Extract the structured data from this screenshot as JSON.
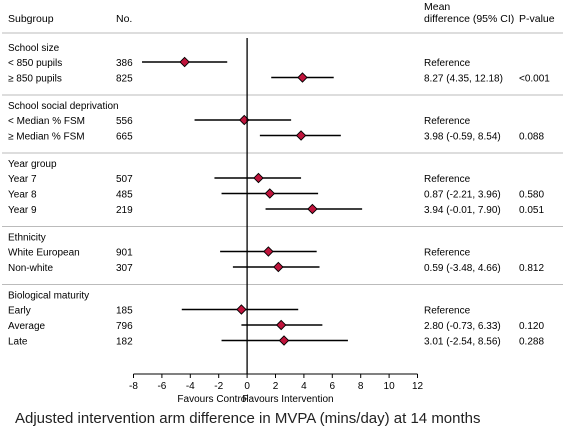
{
  "chart_data": {
    "type": "forest",
    "caption": "Adjusted intervention arm difference in  MVPA (mins/day) at  14 months",
    "columns": {
      "subgroup": "Subgroup",
      "n": "No.",
      "mean_line1": "Mean",
      "mean_line2": "difference (95% CI)",
      "pvalue": "P-value"
    },
    "x_axis": {
      "ticks": [
        -8,
        -6,
        -4,
        -2,
        0,
        2,
        4,
        6,
        8,
        10,
        12
      ],
      "range": [
        -8,
        12
      ],
      "left_label": "Favours Control",
      "right_label": "Favours Intervention"
    },
    "marker_color": "#c0143c",
    "groups": [
      {
        "title": "School size",
        "rows": [
          {
            "label": "< 850 pupils",
            "n": "386",
            "mean": -4.4,
            "lo": -7.4,
            "hi": -1.4,
            "text": "Reference",
            "p": ""
          },
          {
            "label": "≥ 850 pupils",
            "n": "825",
            "mean": 3.9,
            "lo": 1.7,
            "hi": 6.1,
            "text": "8.27 (4.35, 12.18)",
            "p": "<0.001"
          }
        ]
      },
      {
        "title": "School social deprivation",
        "rows": [
          {
            "label": "< Median % FSM",
            "n": "556",
            "mean": -0.2,
            "lo": -3.7,
            "hi": 3.1,
            "text": "Reference",
            "p": ""
          },
          {
            "label": "≥ Median % FSM",
            "n": "665",
            "mean": 3.8,
            "lo": 0.9,
            "hi": 6.6,
            "text": "3.98 (-0.59, 8.54)",
            "p": "0.088"
          }
        ]
      },
      {
        "title": "Year group",
        "rows": [
          {
            "label": "Year 7",
            "n": "507",
            "mean": 0.8,
            "lo": -2.3,
            "hi": 3.8,
            "text": "Reference",
            "p": ""
          },
          {
            "label": "Year 8",
            "n": "485",
            "mean": 1.6,
            "lo": -1.8,
            "hi": 5.0,
            "text": "0.87 (-2.21, 3.96)",
            "p": "0.580"
          },
          {
            "label": "Year 9",
            "n": "219",
            "mean": 4.6,
            "lo": 1.3,
            "hi": 8.1,
            "text": "3.94 (-0.01, 7.90)",
            "p": "0.051"
          }
        ]
      },
      {
        "title": "Ethnicity",
        "rows": [
          {
            "label": "White European",
            "n": "901",
            "mean": 1.5,
            "lo": -1.9,
            "hi": 4.9,
            "text": "Reference",
            "p": ""
          },
          {
            "label": "Non-white",
            "n": "307",
            "mean": 2.2,
            "lo": -1.0,
            "hi": 5.1,
            "text": "0.59 (-3.48, 4.66)",
            "p": "0.812"
          }
        ]
      },
      {
        "title": "Biological maturity",
        "rows": [
          {
            "label": "Early",
            "n": "185",
            "mean": -0.4,
            "lo": -4.6,
            "hi": 3.6,
            "text": "Reference",
            "p": ""
          },
          {
            "label": "Average",
            "n": "796",
            "mean": 2.4,
            "lo": -0.4,
            "hi": 5.3,
            "text": "2.80 (-0.73, 6.33)",
            "p": "0.120"
          },
          {
            "label": "Late",
            "n": "182",
            "mean": 2.6,
            "lo": -1.8,
            "hi": 7.1,
            "text": "3.01 (-2.54, 8.56)",
            "p": "0.288"
          }
        ]
      }
    ]
  }
}
